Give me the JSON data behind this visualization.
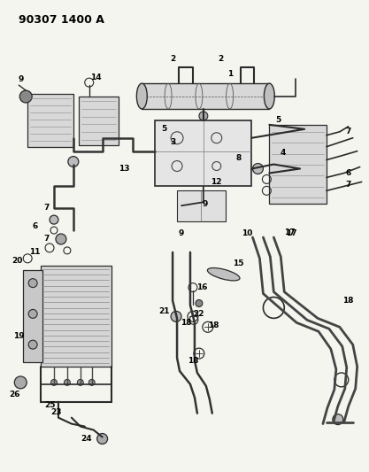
{
  "title": "90307 1400 A",
  "bg_color": "#f5f5f0",
  "line_color": "#2a2a2a",
  "label_color": "#000000",
  "label_fontsize": 6.0,
  "fig_width": 4.17,
  "fig_height": 5.33,
  "dpi": 100
}
